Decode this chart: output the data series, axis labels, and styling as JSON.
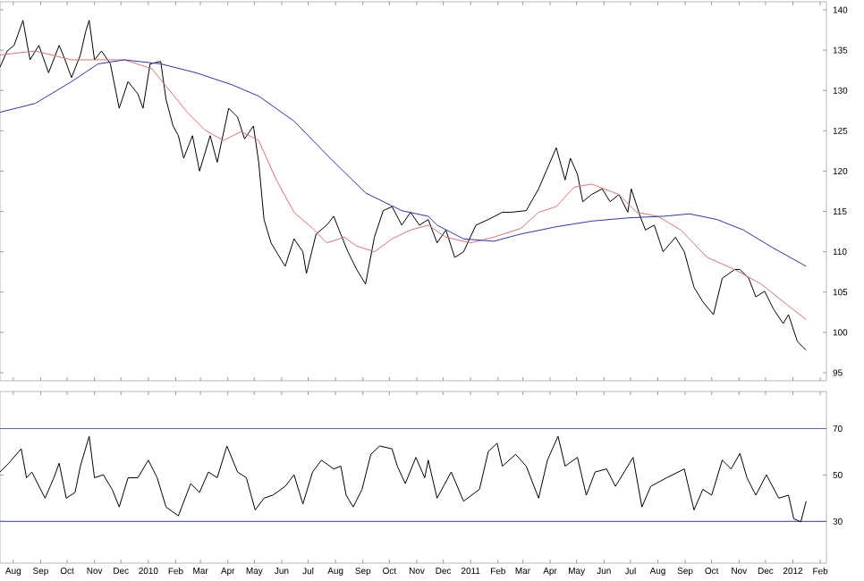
{
  "chart_data": [
    {
      "type": "line",
      "xlim": [
        "2009-07-17",
        "2012-02-08"
      ],
      "tick_labels": "y",
      "ylim": [
        94,
        141
      ],
      "yticks": [
        95,
        100,
        105,
        110,
        115,
        120,
        125,
        130,
        135,
        140
      ],
      "xticks": [
        {
          "value": "2009-08-01",
          "label": null
        },
        {
          "value": "2009-09-01",
          "label": null
        },
        {
          "value": "2009-10-01",
          "label": null
        },
        {
          "value": "2009-11-01",
          "label": null
        },
        {
          "value": "2009-12-01",
          "label": null
        },
        {
          "value": "2010-01-01",
          "label": null
        },
        {
          "value": "2010-02-01",
          "label": null
        },
        {
          "value": "2010-03-01",
          "label": null
        },
        {
          "value": "2010-04-01",
          "label": null
        },
        {
          "value": "2010-05-01",
          "label": null
        },
        {
          "value": "2010-06-01",
          "label": null
        },
        {
          "value": "2010-07-01",
          "label": null
        },
        {
          "value": "2010-08-01",
          "label": null
        },
        {
          "value": "2010-09-01",
          "label": null
        },
        {
          "value": "2010-10-01",
          "label": null
        },
        {
          "value": "2010-11-01",
          "label": null
        },
        {
          "value": "2010-12-01",
          "label": null
        },
        {
          "value": "2011-01-01",
          "label": null
        },
        {
          "value": "2011-02-01",
          "label": null
        },
        {
          "value": "2011-03-01",
          "label": null
        },
        {
          "value": "2011-04-01",
          "label": null
        },
        {
          "value": "2011-05-01",
          "label": null
        },
        {
          "value": "2011-06-01",
          "label": null
        },
        {
          "value": "2011-07-01",
          "label": null
        },
        {
          "value": "2011-08-01",
          "label": null
        },
        {
          "value": "2011-09-01",
          "label": null
        },
        {
          "value": "2011-10-01",
          "label": null
        },
        {
          "value": "2011-11-01",
          "label": null
        },
        {
          "value": "2011-12-01",
          "label": null
        },
        {
          "value": "2012-01-01",
          "label": null
        },
        {
          "value": "2012-02-01",
          "label": null
        }
      ],
      "series": [
        {
          "color": "#000000",
          "x": [
            "2009-07-17",
            "2009-07-25",
            "2009-08-02",
            "2009-08-12",
            "2009-08-20",
            "2009-08-30",
            "2009-09-10",
            "2009-09-22",
            "2009-09-28",
            "2009-10-06",
            "2009-10-16",
            "2009-10-22",
            "2009-10-26",
            "2009-11-01",
            "2009-11-09",
            "2009-11-19",
            "2009-11-29",
            "2009-12-09",
            "2009-12-20",
            "2009-12-26",
            "2010-01-03",
            "2010-01-15",
            "2010-01-21",
            "2010-01-29",
            "2010-02-04",
            "2010-02-10",
            "2010-02-20",
            "2010-02-28",
            "2010-03-12",
            "2010-03-20",
            "2010-04-02",
            "2010-04-12",
            "2010-04-20",
            "2010-04-30",
            "2010-05-06",
            "2010-05-12",
            "2010-05-20",
            "2010-06-01",
            "2010-06-05",
            "2010-06-15",
            "2010-06-25",
            "2010-06-29",
            "2010-07-10",
            "2010-07-22",
            "2010-07-30",
            "2010-08-05",
            "2010-08-15",
            "2010-08-25",
            "2010-09-04",
            "2010-09-14",
            "2010-09-24",
            "2010-10-04",
            "2010-10-15",
            "2010-10-25",
            "2010-11-04",
            "2010-11-14",
            "2010-11-24",
            "2010-12-04",
            "2010-12-14",
            "2010-12-24",
            "2011-01-07",
            "2011-01-21",
            "2011-02-06",
            "2011-02-16",
            "2011-03-05",
            "2011-03-19",
            "2011-04-08",
            "2011-04-18",
            "2011-04-24",
            "2011-05-02",
            "2011-05-08",
            "2011-05-18",
            "2011-05-30",
            "2011-06-08",
            "2011-06-18",
            "2011-06-28",
            "2011-07-02",
            "2011-07-12",
            "2011-07-18",
            "2011-07-28",
            "2011-08-07",
            "2011-08-21",
            "2011-08-31",
            "2011-09-11",
            "2011-09-21",
            "2011-10-03",
            "2011-10-13",
            "2011-10-27",
            "2011-11-02",
            "2011-11-12",
            "2011-11-20",
            "2011-11-30",
            "2011-12-10",
            "2011-12-21",
            "2011-12-27",
            "2012-01-06",
            "2012-01-12",
            "2012-01-16"
          ],
          "values": [
            132.9,
            134.9,
            135.6,
            138.7,
            133.8,
            135.6,
            132.2,
            135.6,
            134.0,
            131.6,
            134.4,
            137.3,
            138.7,
            133.8,
            134.9,
            133.3,
            127.8,
            131.1,
            129.6,
            127.8,
            133.3,
            133.6,
            128.9,
            125.6,
            124.4,
            121.6,
            124.4,
            120.0,
            124.4,
            121.1,
            127.8,
            126.7,
            124.0,
            125.6,
            121.1,
            114.0,
            111.1,
            108.9,
            108.2,
            111.6,
            110.0,
            107.3,
            112.2,
            113.3,
            114.4,
            112.7,
            110.0,
            107.8,
            106.0,
            111.8,
            115.1,
            115.6,
            113.3,
            114.9,
            113.3,
            114.0,
            111.1,
            112.7,
            109.3,
            110.0,
            113.3,
            114.0,
            114.9,
            114.9,
            115.1,
            117.8,
            122.9,
            118.9,
            121.6,
            119.6,
            116.2,
            117.1,
            117.8,
            116.2,
            117.1,
            114.9,
            117.8,
            114.4,
            112.7,
            113.3,
            110.0,
            111.8,
            110.0,
            105.6,
            103.8,
            102.2,
            106.7,
            107.8,
            107.8,
            106.7,
            104.4,
            105.1,
            102.9,
            101.1,
            102.2,
            98.9,
            98.2,
            97.8
          ]
        },
        {
          "color": "#e07070",
          "x": [
            "2009-07-17",
            "2009-08-26",
            "2009-10-06",
            "2009-11-05",
            "2009-12-05",
            "2010-01-05",
            "2010-01-25",
            "2010-02-14",
            "2010-03-06",
            "2010-03-27",
            "2010-04-16",
            "2010-05-06",
            "2010-05-26",
            "2010-06-15",
            "2010-07-06",
            "2010-07-22",
            "2010-08-11",
            "2010-08-25",
            "2010-09-14",
            "2010-10-04",
            "2010-10-25",
            "2010-11-14",
            "2010-12-04",
            "2011-01-01",
            "2011-01-27",
            "2011-02-27",
            "2011-03-19",
            "2011-04-08",
            "2011-04-28",
            "2011-05-18",
            "2011-06-18",
            "2011-07-08",
            "2011-08-01",
            "2011-08-27",
            "2011-09-26",
            "2011-10-27",
            "2011-11-26",
            "2011-12-27",
            "2012-01-16"
          ],
          "values": [
            134.4,
            134.9,
            133.8,
            133.8,
            133.8,
            132.7,
            130.0,
            127.3,
            125.1,
            123.8,
            124.9,
            123.8,
            118.9,
            114.9,
            112.9,
            111.1,
            111.8,
            110.7,
            110.0,
            111.6,
            112.7,
            113.3,
            111.8,
            111.1,
            111.8,
            112.9,
            114.9,
            115.6,
            118.0,
            118.4,
            117.1,
            114.9,
            114.4,
            112.7,
            109.3,
            107.8,
            106.0,
            103.3,
            101.6
          ]
        },
        {
          "color": "#3030c0",
          "x": [
            "2009-07-17",
            "2009-08-26",
            "2009-10-06",
            "2009-11-05",
            "2009-12-05",
            "2010-01-15",
            "2010-02-24",
            "2010-04-06",
            "2010-05-06",
            "2010-06-15",
            "2010-07-26",
            "2010-09-04",
            "2010-10-15",
            "2010-11-14",
            "2010-11-24",
            "2010-12-24",
            "2011-01-27",
            "2011-02-27",
            "2011-04-08",
            "2011-05-18",
            "2011-06-28",
            "2011-08-07",
            "2011-09-06",
            "2011-10-07",
            "2011-11-06",
            "2011-12-06",
            "2012-01-16"
          ],
          "values": [
            127.3,
            128.4,
            131.1,
            133.3,
            133.8,
            133.3,
            132.2,
            130.7,
            129.3,
            126.2,
            121.6,
            117.3,
            115.1,
            114.4,
            113.3,
            111.6,
            111.3,
            112.2,
            113.1,
            113.8,
            114.2,
            114.4,
            114.7,
            114.0,
            112.7,
            110.7,
            108.2
          ]
        }
      ]
    },
    {
      "type": "line",
      "xlim": [
        "2009-07-17",
        "2012-02-08"
      ],
      "ylim": [
        12,
        86
      ],
      "yticks": [
        30,
        50,
        70
      ],
      "xticks": [
        {
          "value": "2009-08-01",
          "label": "Aug"
        },
        {
          "value": "2009-09-01",
          "label": "Sep"
        },
        {
          "value": "2009-10-01",
          "label": "Oct"
        },
        {
          "value": "2009-11-01",
          "label": "Nov"
        },
        {
          "value": "2009-12-01",
          "label": "Dec"
        },
        {
          "value": "2010-01-01",
          "label": "2010"
        },
        {
          "value": "2010-02-01",
          "label": "Feb"
        },
        {
          "value": "2010-03-01",
          "label": "Mar"
        },
        {
          "value": "2010-04-01",
          "label": "Apr"
        },
        {
          "value": "2010-05-01",
          "label": "May"
        },
        {
          "value": "2010-06-01",
          "label": "Jun"
        },
        {
          "value": "2010-07-01",
          "label": "Jul"
        },
        {
          "value": "2010-08-01",
          "label": "Aug"
        },
        {
          "value": "2010-09-01",
          "label": "Sep"
        },
        {
          "value": "2010-10-01",
          "label": "Oct"
        },
        {
          "value": "2010-11-01",
          "label": "Nov"
        },
        {
          "value": "2010-12-01",
          "label": "Dec"
        },
        {
          "value": "2011-01-01",
          "label": "2011"
        },
        {
          "value": "2011-02-01",
          "label": "Feb"
        },
        {
          "value": "2011-03-01",
          "label": "Mar"
        },
        {
          "value": "2011-04-01",
          "label": "Apr"
        },
        {
          "value": "2011-05-01",
          "label": "May"
        },
        {
          "value": "2011-06-01",
          "label": "Jun"
        },
        {
          "value": "2011-07-01",
          "label": "Jul"
        },
        {
          "value": "2011-08-01",
          "label": "Aug"
        },
        {
          "value": "2011-09-01",
          "label": "Sep"
        },
        {
          "value": "2011-10-01",
          "label": "Oct"
        },
        {
          "value": "2011-11-01",
          "label": "Nov"
        },
        {
          "value": "2011-12-01",
          "label": "Dec"
        },
        {
          "value": "2012-01-01",
          "label": "2012"
        },
        {
          "value": "2012-02-01",
          "label": "Feb"
        }
      ],
      "ref_lines": [
        {
          "axis": "y",
          "value": 70,
          "color": "#6060c0"
        },
        {
          "axis": "y",
          "value": 30,
          "color": "#6060c0"
        }
      ],
      "series": [
        {
          "color": "#000000",
          "x": [
            "2009-07-17",
            "2009-07-27",
            "2009-08-10",
            "2009-08-16",
            "2009-08-22",
            "2009-09-06",
            "2009-09-16",
            "2009-09-22",
            "2009-09-30",
            "2009-10-10",
            "2009-10-16",
            "2009-10-26",
            "2009-11-01",
            "2009-11-11",
            "2009-11-21",
            "2009-11-29",
            "2009-12-09",
            "2009-12-20",
            "2010-01-01",
            "2010-01-11",
            "2010-01-21",
            "2010-02-04",
            "2010-02-18",
            "2010-02-28",
            "2010-03-10",
            "2010-03-20",
            "2010-03-31",
            "2010-04-12",
            "2010-04-22",
            "2010-05-02",
            "2010-05-12",
            "2010-05-22",
            "2010-06-05",
            "2010-06-15",
            "2010-06-25",
            "2010-07-06",
            "2010-07-16",
            "2010-07-30",
            "2010-08-07",
            "2010-08-13",
            "2010-08-21",
            "2010-08-31",
            "2010-09-10",
            "2010-09-20",
            "2010-10-04",
            "2010-10-10",
            "2010-10-19",
            "2010-10-31",
            "2010-11-10",
            "2010-11-14",
            "2010-11-24",
            "2010-12-10",
            "2010-12-24",
            "2011-01-11",
            "2011-01-21",
            "2011-01-31",
            "2011-02-06",
            "2011-02-21",
            "2011-03-05",
            "2011-03-19",
            "2011-03-29",
            "2011-04-10",
            "2011-04-18",
            "2011-05-02",
            "2011-05-12",
            "2011-05-22",
            "2011-06-04",
            "2011-06-14",
            "2011-07-04",
            "2011-07-14",
            "2011-07-24",
            "2011-08-11",
            "2011-08-31",
            "2011-09-11",
            "2011-09-21",
            "2011-10-01",
            "2011-10-13",
            "2011-10-23",
            "2011-11-02",
            "2011-11-10",
            "2011-11-20",
            "2011-12-02",
            "2011-12-16",
            "2011-12-27",
            "2012-01-02",
            "2012-01-10",
            "2012-01-16"
          ],
          "values": [
            51.3,
            55.1,
            61.3,
            48.8,
            51.3,
            40.0,
            48.8,
            55.1,
            40.0,
            42.5,
            53.8,
            66.7,
            48.8,
            50.1,
            43.8,
            36.2,
            48.8,
            48.8,
            56.4,
            48.8,
            36.2,
            32.4,
            46.3,
            42.5,
            51.3,
            48.8,
            62.5,
            51.3,
            48.8,
            34.9,
            40.0,
            41.3,
            45.1,
            50.1,
            37.5,
            51.3,
            56.4,
            52.6,
            53.8,
            41.3,
            36.2,
            43.8,
            58.9,
            62.5,
            61.3,
            53.8,
            46.3,
            57.6,
            48.8,
            56.4,
            40.0,
            51.3,
            38.7,
            43.8,
            60.1,
            63.7,
            53.8,
            58.9,
            53.8,
            40.0,
            56.4,
            66.7,
            53.8,
            57.6,
            41.3,
            51.3,
            52.6,
            45.1,
            57.6,
            36.2,
            45.1,
            48.8,
            52.6,
            34.9,
            43.8,
            41.3,
            56.4,
            52.6,
            59.3,
            48.8,
            41.3,
            50.1,
            40.0,
            41.3,
            31.1,
            29.8,
            38.7
          ]
        }
      ]
    }
  ]
}
